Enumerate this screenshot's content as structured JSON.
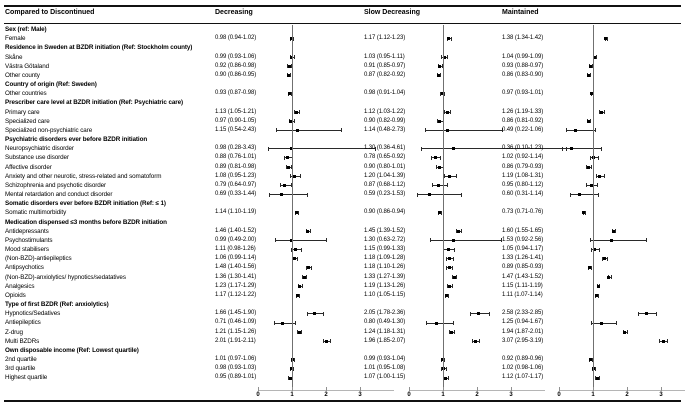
{
  "title": "Compared to Discontinued",
  "chart_data": {
    "type": "scatter",
    "subtype": "forest-plot",
    "title": "Compared to Discontinued",
    "series_names": [
      "Decreasing",
      "Slow Decreasing",
      "Maintained"
    ],
    "value_format": "estimate (95% CI)",
    "x_axis": {
      "ticks": [
        "0",
        "1",
        "2",
        "3"
      ],
      "range": [
        0,
        4
      ],
      "reference_line": 1,
      "grid": false
    },
    "rows": [
      {
        "label": "Sex (ref: Male)",
        "header": true
      },
      {
        "label": "Female",
        "values": [
          "0.98 (0.94-1.02)",
          "1.17 (1.12-1.23)",
          "1.38 (1.34-1.42)"
        ]
      },
      {
        "label": "Residence in Sweden at BZDR initiation (Ref: Stockholm county)",
        "header": true
      },
      {
        "label": "Skåne",
        "values": [
          "0.99 (0.93-1.06)",
          "1.03 (0.95-1.11)",
          "1.04 (0.99-1.09)"
        ]
      },
      {
        "label": "Västra Götaland",
        "values": [
          "0.92 (0.86-0.98)",
          "0.91 (0.85-0.97)",
          "0.93 (0.88-0.97)"
        ]
      },
      {
        "label": "Other county",
        "values": [
          "0.90 (0.86-0.95)",
          "0.87 (0.82-0.92)",
          "0.86 (0.83-0.90)"
        ]
      },
      {
        "label": "Country of origin (Ref: Sweden)",
        "header": true
      },
      {
        "label": "Other countries",
        "values": [
          "0.93 (0.87-0.98)",
          "0.98 (0.91-1.04)",
          "0.97 (0.93-1.01)"
        ]
      },
      {
        "label": "Prescriber care level at BZDR initiation (Ref: Psychiatric care)",
        "header": true
      },
      {
        "label": "Primary care",
        "values": [
          "1.13 (1.05-1.21)",
          "1.12 (1.03-1.22)",
          "1.26 (1.19-1.33)"
        ]
      },
      {
        "label": "Specialized care",
        "values": [
          "0.97 (0.90-1.05)",
          "0.90 (0.82-0.99)",
          "0.86 (0.81-0.92)"
        ]
      },
      {
        "label": "Specialized non-psychiatric care",
        "values": [
          "1.15 (0.54-2.43)",
          "1.14 (0.48-2.73)",
          "0.49 (0.22-1.06)"
        ]
      },
      {
        "label": "Psychiatric disorders ever before BZDR initiation",
        "header": true
      },
      {
        "label": "Neuropsychiatric disorder",
        "values": [
          "0.98 (0.28-3.43)",
          "1.30 (0.36-4.61)",
          "0.36 (0.10-1.23)"
        ]
      },
      {
        "label": "Substance use disorder",
        "values": [
          "0.88 (0.76-1.01)",
          "0.78 (0.65-0.92)",
          "1.02 (0.92-1.14)"
        ]
      },
      {
        "label": "Affective disorder",
        "values": [
          "0.89 (0.81-0.98)",
          "0.90 (0.80-1.01)",
          "0.86 (0.79-0.93)"
        ]
      },
      {
        "label": "Anxiety and other neurotic, stress-related and somatoform",
        "values": [
          "1.08 (0.95-1.23)",
          "1.20 (1.04-1.39)",
          "1.19 (1.08-1.31)"
        ]
      },
      {
        "label": "Schizophrenia and psychotic disorder",
        "values": [
          "0.79 (0.64-0.97)",
          "0.87 (0.68-1.12)",
          "0.95 (0.80-1.12)"
        ]
      },
      {
        "label": "Mental retardation and conduct disorder",
        "values": [
          "0.69 (0.33-1.44)",
          "0.59 (0.23-1.53)",
          "0.60 (0.31-1.14)"
        ]
      },
      {
        "label": "Somatic disorders ever before BZDR initiation (Ref: ≤ 1)",
        "header": true
      },
      {
        "label": "Somatic multimorbidity",
        "values": [
          "1.14 (1.10-1.19)",
          "0.90 (0.86-0.94)",
          "0.73 (0.71-0.76)"
        ]
      },
      {
        "label": "Medication dispensed ≤3 months before BZDR initiation",
        "header": true
      },
      {
        "label": "Antidepressants",
        "values": [
          "1.46 (1.40-1.52)",
          "1.45 (1.39-1.52)",
          "1.60 (1.55-1.65)"
        ]
      },
      {
        "label": "Psychostimulants",
        "values": [
          "0.99 (0.49-2.00)",
          "1.30 (0.63-2.72)",
          "1.53 (0.92-2.56)"
        ]
      },
      {
        "label": "Mood stabilisers",
        "values": [
          "1.11 (0.98-1.26)",
          "1.15 (0.99-1.33)",
          "1.05 (0.94-1.17)"
        ]
      },
      {
        "label": "(Non-BZD)-antiepileptics",
        "values": [
          "1.06 (0.99-1.14)",
          "1.18 (1.09-1.28)",
          "1.33 (1.26-1.41)"
        ]
      },
      {
        "label": "Antipsychotics",
        "values": [
          "1.48 (1.40-1.56)",
          "1.18 (1.10-1.26)",
          "0.89 (0.85-0.93)"
        ]
      },
      {
        "label": "(Non-BZD)-anxiolytics/ hypnotics/sedatatives",
        "values": [
          "1.36 (1.30-1.41)",
          "1.33 (1.27-1.39)",
          "1.47 (1.43-1.52)"
        ]
      },
      {
        "label": "Analgesics",
        "values": [
          "1.23 (1.17-1.29)",
          "1.19 (1.13-1.26)",
          "1.15 (1.11-1.19)"
        ]
      },
      {
        "label": "Opioids",
        "values": [
          "1.17 (1.12-1.22)",
          "1.10 (1.05-1.15)",
          "1.11 (1.07-1.14)"
        ]
      },
      {
        "label": "Type of first BZDR (Ref: anxiolytics)",
        "header": true
      },
      {
        "label": "Hypnotics/Sedatives",
        "values": [
          "1.66 (1.45-1.90)",
          "2.05 (1.78-2.36)",
          "2.58 (2.33-2.85)"
        ]
      },
      {
        "label": "Antiepileptics",
        "values": [
          "0.71 (0.46-1.09)",
          "0.80 (0.49-1.30)",
          "1.25 (0.94-1.67)"
        ]
      },
      {
        "label": "Z-drug",
        "values": [
          "1.21 (1.15-1.26)",
          "1.24 (1.18-1.31)",
          "1.94 (1.87-2.01)"
        ]
      },
      {
        "label": "Multi BZDRs",
        "values": [
          "2.01 (1.91-2.11)",
          "1.96 (1.85-2.07)",
          "3.07 (2.95-3.19)"
        ]
      },
      {
        "label": "Own disposable income (Ref: Lowest quartile)",
        "header": true
      },
      {
        "label": "2nd quartile",
        "values": [
          "1.01 (0.97-1.06)",
          "0.99 (0.93-1.04)",
          "0.92 (0.89-0.96)"
        ]
      },
      {
        "label": "3rd quartile",
        "values": [
          "0.98 (0.93-1.03)",
          "1.01 (0.95-1.08)",
          "1.02 (0.98-1.06)"
        ]
      },
      {
        "label": "Highest quartile",
        "values": [
          "0.95 (0.89-1.01)",
          "1.07 (1.00-1.15)",
          "1.12 (1.07-1.17)"
        ]
      }
    ]
  }
}
